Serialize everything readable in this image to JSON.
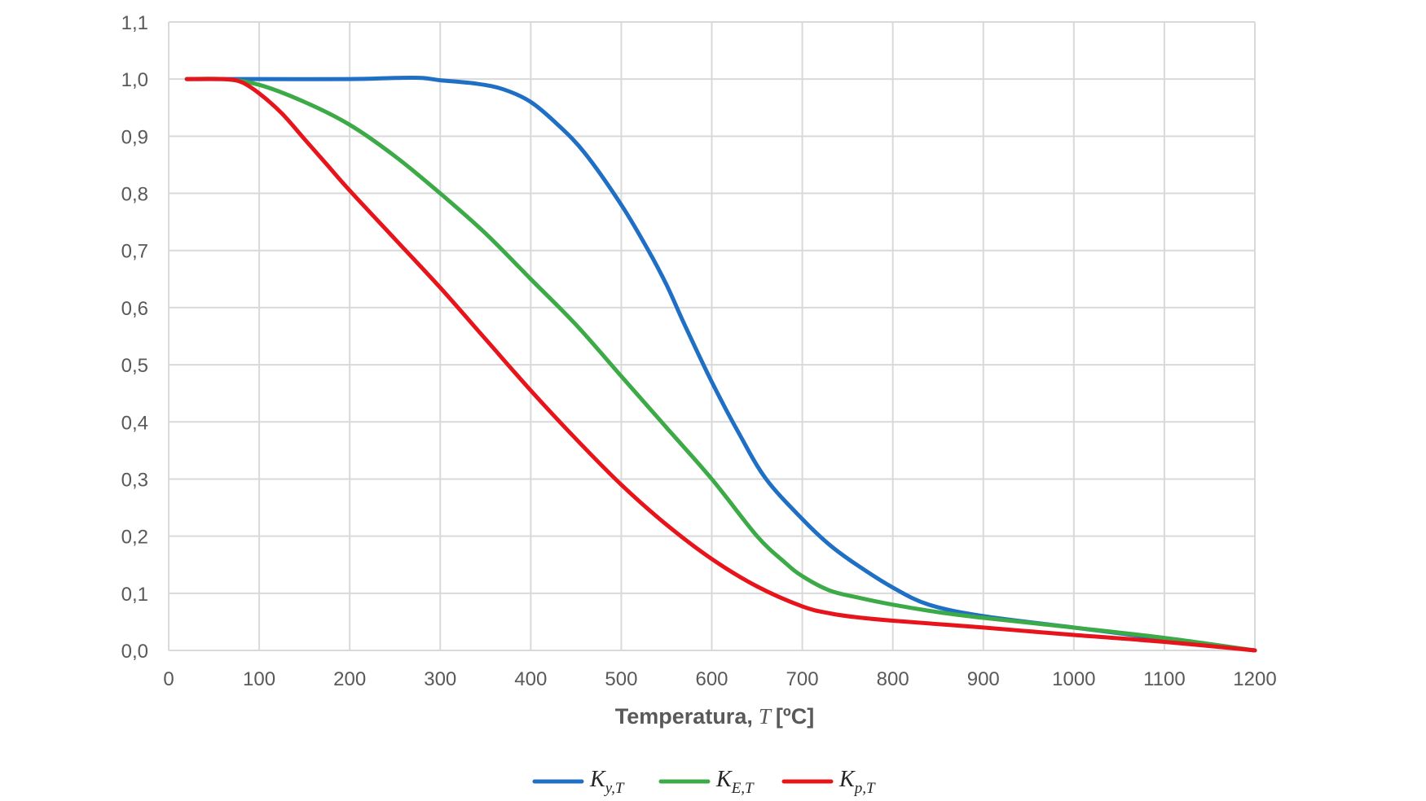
{
  "chart_data": {
    "type": "line",
    "title": "",
    "xlabel": {
      "text": "Temperatura,",
      "symbol": "T",
      "unit": "[ºC]"
    },
    "ylabel": "",
    "xlim": [
      0,
      1200
    ],
    "ylim": [
      0,
      1.1
    ],
    "xticks": [
      "0",
      "100",
      "200",
      "300",
      "400",
      "500",
      "600",
      "700",
      "800",
      "900",
      "1000",
      "1100",
      "1200"
    ],
    "xtick_values": [
      0,
      100,
      200,
      300,
      400,
      500,
      600,
      700,
      800,
      900,
      1000,
      1100,
      1200
    ],
    "yticks": [
      "0,0",
      "0,1",
      "0,2",
      "0,3",
      "0,4",
      "0,5",
      "0,6",
      "0,7",
      "0,8",
      "0,9",
      "1,0",
      "1,1"
    ],
    "ytick_values": [
      0,
      0.1,
      0.2,
      0.3,
      0.4,
      0.5,
      0.6,
      0.7,
      0.8,
      0.9,
      1.0,
      1.1
    ],
    "grid": true,
    "legend_position": "bottom-center",
    "series": [
      {
        "name": "K",
        "subscript": "y,T",
        "color": "#1F6FC5",
        "points": [
          [
            20,
            1.0
          ],
          [
            100,
            1.0
          ],
          [
            200,
            1.0
          ],
          [
            250,
            1.002
          ],
          [
            280,
            1.002
          ],
          [
            300,
            0.998
          ],
          [
            340,
            0.992
          ],
          [
            370,
            0.982
          ],
          [
            400,
            0.96
          ],
          [
            430,
            0.92
          ],
          [
            460,
            0.87
          ],
          [
            500,
            0.78
          ],
          [
            530,
            0.7
          ],
          [
            550,
            0.64
          ],
          [
            570,
            0.57
          ],
          [
            600,
            0.47
          ],
          [
            630,
            0.38
          ],
          [
            660,
            0.3
          ],
          [
            700,
            0.23
          ],
          [
            730,
            0.185
          ],
          [
            760,
            0.15
          ],
          [
            800,
            0.11
          ],
          [
            840,
            0.08
          ],
          [
            900,
            0.06
          ],
          [
            1000,
            0.04
          ],
          [
            1100,
            0.02
          ],
          [
            1200,
            0.0
          ]
        ]
      },
      {
        "name": "K",
        "subscript": "E,T",
        "color": "#3CAA46",
        "points": [
          [
            20,
            1.0
          ],
          [
            60,
            1.0
          ],
          [
            100,
            0.99
          ],
          [
            150,
            0.96
          ],
          [
            200,
            0.92
          ],
          [
            250,
            0.865
          ],
          [
            300,
            0.8
          ],
          [
            350,
            0.73
          ],
          [
            400,
            0.65
          ],
          [
            450,
            0.57
          ],
          [
            500,
            0.48
          ],
          [
            550,
            0.39
          ],
          [
            600,
            0.3
          ],
          [
            650,
            0.2
          ],
          [
            680,
            0.155
          ],
          [
            700,
            0.13
          ],
          [
            730,
            0.105
          ],
          [
            760,
            0.093
          ],
          [
            800,
            0.08
          ],
          [
            850,
            0.067
          ],
          [
            900,
            0.057
          ],
          [
            1000,
            0.04
          ],
          [
            1100,
            0.022
          ],
          [
            1200,
            0.0
          ]
        ]
      },
      {
        "name": "K",
        "subscript": "p,T",
        "color": "#E8141C",
        "points": [
          [
            20,
            1.0
          ],
          [
            60,
            1.0
          ],
          [
            80,
            0.995
          ],
          [
            100,
            0.975
          ],
          [
            125,
            0.94
          ],
          [
            150,
            0.895
          ],
          [
            175,
            0.85
          ],
          [
            200,
            0.805
          ],
          [
            250,
            0.72
          ],
          [
            300,
            0.635
          ],
          [
            350,
            0.545
          ],
          [
            400,
            0.455
          ],
          [
            450,
            0.37
          ],
          [
            500,
            0.29
          ],
          [
            550,
            0.22
          ],
          [
            600,
            0.16
          ],
          [
            650,
            0.112
          ],
          [
            700,
            0.077
          ],
          [
            730,
            0.065
          ],
          [
            760,
            0.058
          ],
          [
            800,
            0.052
          ],
          [
            900,
            0.04
          ],
          [
            1000,
            0.027
          ],
          [
            1100,
            0.015
          ],
          [
            1200,
            0.0
          ]
        ]
      }
    ]
  }
}
